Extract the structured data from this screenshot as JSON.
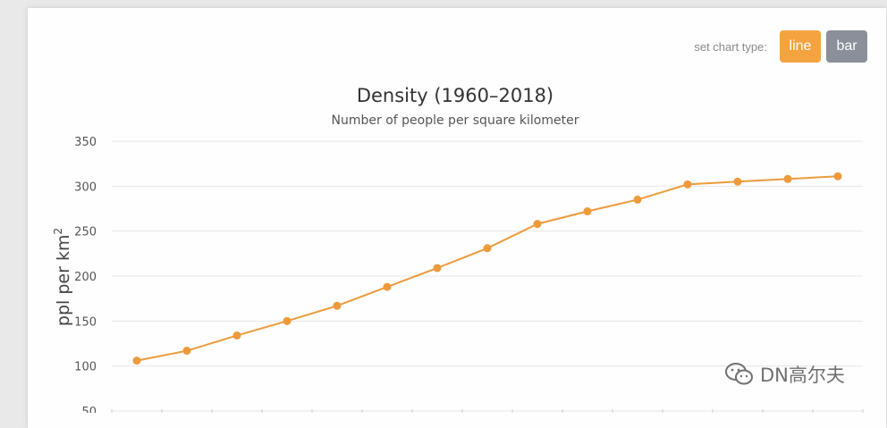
{
  "controls": {
    "label": "set chart type:",
    "buttons": [
      {
        "label": "line",
        "color": "#f4a340",
        "active": true
      },
      {
        "label": "bar",
        "color": "#8a8f99",
        "active": false
      }
    ]
  },
  "chart_data": {
    "type": "line",
    "title": "Density (1960–2018)",
    "subtitle": "Number of people per square kilometer",
    "ylabel": "ppl per km",
    "ylabel_superscript": "2",
    "xlabel": "",
    "ylim": [
      50,
      350
    ],
    "yticks": [
      "50",
      "100",
      "150",
      "200",
      "250",
      "300",
      "350"
    ],
    "grid": true,
    "series": [
      {
        "color": "#ed9a3a",
        "values": [
          106,
          117,
          134,
          150,
          167,
          188,
          209,
          231,
          258,
          272,
          285,
          302,
          305,
          308,
          311
        ]
      }
    ]
  },
  "watermark": {
    "text": "DN高尔夫",
    "icon": "wechat-icon"
  }
}
